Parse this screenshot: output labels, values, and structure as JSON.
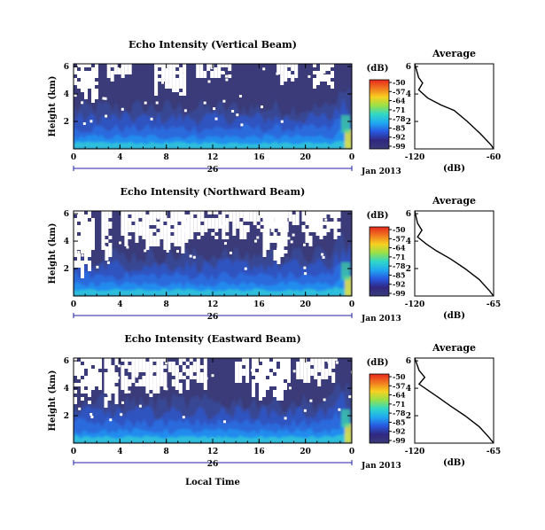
{
  "figure": {
    "x_label": "Local Time",
    "date_label": "Jan 2013",
    "day_label": "26",
    "x_ticks": [
      "0",
      "4",
      "8",
      "12",
      "16",
      "20",
      "0"
    ],
    "colorbar_unit": "(dB)",
    "colorbar_ticks": [
      "-50",
      "-57",
      "-64",
      "-71",
      "-78",
      "-85",
      "-92",
      "-99"
    ],
    "colorbar_colors": [
      "#e8281e",
      "#f07820",
      "#f8d020",
      "#98e048",
      "#30d8c8",
      "#20a8f0",
      "#2858e0",
      "#302880",
      "#3a3a78"
    ],
    "background_color": "#3a3b78",
    "average_title": "Average",
    "average_xlabel": "(dB)"
  },
  "chart_data": [
    {
      "type": "heatmap",
      "title": "Echo Intensity (Vertical Beam)",
      "ylabel": "Height (km)",
      "yticks": [
        "2",
        "4",
        "6"
      ],
      "ylim": [
        0,
        6.2
      ],
      "xlim": [
        0,
        24
      ],
      "clim": [
        -99,
        -50
      ]
    },
    {
      "type": "line",
      "title": "Average",
      "xlabel": "(dB)",
      "xticks": [
        "-120",
        "-60"
      ],
      "xlim": [
        -120,
        -60
      ],
      "ylim": [
        0,
        6.2
      ],
      "x": [
        -120,
        -117,
        -114,
        -117,
        -110,
        -100,
        -90,
        -80,
        -70,
        -62,
        -60
      ],
      "y": [
        6.2,
        5.2,
        4.8,
        4.3,
        3.7,
        3.2,
        2.8,
        2.0,
        1.1,
        0.3,
        0.0
      ]
    },
    {
      "type": "heatmap",
      "title": "Echo Intensity (Northward Beam)",
      "ylabel": "Height (km)",
      "yticks": [
        "2",
        "4",
        "6"
      ],
      "ylim": [
        0,
        6.2
      ],
      "xlim": [
        0,
        24
      ],
      "clim": [
        -99,
        -50
      ]
    },
    {
      "type": "line",
      "title": "Average",
      "xlabel": "(dB)",
      "xticks": [
        "-120",
        "-65"
      ],
      "xlim": [
        -120,
        -65
      ],
      "ylim": [
        0,
        6.2
      ],
      "x": [
        -120,
        -118,
        -115,
        -118,
        -112,
        -105,
        -95,
        -85,
        -75,
        -68,
        -65
      ],
      "y": [
        6.2,
        5.3,
        4.8,
        4.3,
        3.8,
        3.3,
        2.7,
        2.0,
        1.2,
        0.4,
        0.0
      ]
    },
    {
      "type": "heatmap",
      "title": "Echo Intensity (Eastward Beam)",
      "ylabel": "Height (km)",
      "yticks": [
        "2",
        "4",
        "6"
      ],
      "ylim": [
        0,
        6.2
      ],
      "xlim": [
        0,
        24
      ],
      "clim": [
        -99,
        -50
      ]
    },
    {
      "type": "line",
      "title": "Average",
      "xlabel": "(dB)",
      "xticks": [
        "-120",
        "-65"
      ],
      "xlim": [
        -120,
        -65
      ],
      "ylim": [
        0,
        6.2
      ],
      "x": [
        -120,
        -117,
        -113,
        -117,
        -110,
        -103,
        -95,
        -85,
        -75,
        -68,
        -65
      ],
      "y": [
        6.2,
        5.3,
        4.8,
        4.3,
        3.8,
        3.3,
        2.7,
        2.0,
        1.2,
        0.4,
        0.0
      ]
    }
  ]
}
